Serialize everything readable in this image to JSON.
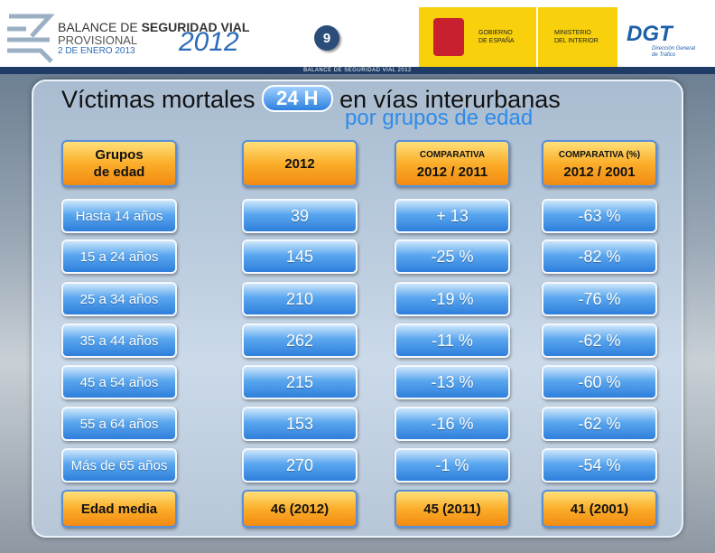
{
  "header": {
    "brand_line1_a": "BALANCE DE ",
    "brand_line1_b": "SEGURIDAD VIAL",
    "brand_line2": "PROVISIONAL",
    "brand_year": "2012",
    "brand_date": "2 DE ENERO 2013",
    "page_number": "9",
    "gov_lines": [
      "GOBIERNO",
      "DE ESPAÑA"
    ],
    "ministry_lines": [
      "MINISTERIO",
      "DEL INTERIOR"
    ],
    "dgt": "DGT",
    "dgt_subtitle_lines": [
      "Dirección General",
      "de Tráfico"
    ]
  },
  "strip": "BALANCE DE SEGURIDAD VIAL 2012",
  "title": {
    "prefix": "Víctimas mortales",
    "badge": "24 H",
    "suffix": "en vías interurbanas",
    "subtitle": "por grupos de edad"
  },
  "table": {
    "header": [
      {
        "lines": [
          "Grupos",
          "de edad"
        ]
      },
      {
        "lines": [
          "2012"
        ]
      },
      {
        "small": "COMPARATIVA",
        "lines": [
          "2012 / 2011"
        ]
      },
      {
        "small": "COMPARATIVA (%)",
        "lines": [
          "2012 / 2001"
        ]
      }
    ],
    "rows": [
      [
        "Hasta 14 años",
        "39",
        "+ 13",
        "-63 %"
      ],
      [
        "15 a 24 años",
        "145",
        "-25 %",
        "-82 %"
      ],
      [
        "25 a 34 años",
        "210",
        "-19 %",
        "-76 %"
      ],
      [
        "35 a 44 años",
        "262",
        "-11 %",
        "-62 %"
      ],
      [
        "45 a 54 años",
        "215",
        "-13 %",
        "-60 %"
      ],
      [
        "55 a 64 años",
        "153",
        "-16 %",
        "-62 %"
      ],
      [
        "Más de 65 años",
        "270",
        "-1 %",
        "-54 %"
      ]
    ],
    "footer": [
      "Edad media",
      "46  (2012)",
      "45 (2011)",
      "41 (2001)"
    ]
  }
}
